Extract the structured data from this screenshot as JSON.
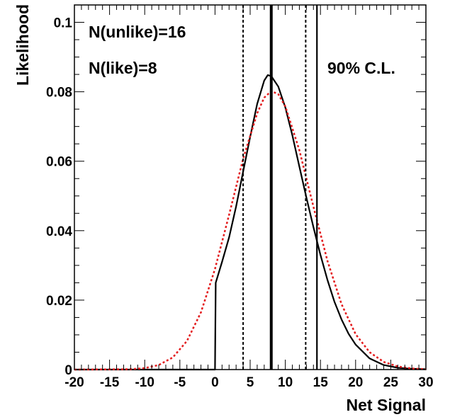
{
  "chart_data": {
    "type": "line",
    "xlabel": "Net Signal",
    "ylabel": "Likelihood",
    "xlim": [
      -20,
      30
    ],
    "ylim": [
      0,
      0.105
    ],
    "x_ticks": [
      -20,
      -15,
      -10,
      -5,
      0,
      5,
      10,
      15,
      20,
      25,
      30
    ],
    "x_tick_labels": [
      "-20",
      "-15",
      "-10",
      "-5",
      "0",
      "5",
      "10",
      "15",
      "20",
      "25",
      "30"
    ],
    "y_ticks": [
      0,
      0.02,
      0.04,
      0.06,
      0.08,
      0.1
    ],
    "y_tick_labels": [
      "0",
      "0.02",
      "0.04",
      "0.06",
      "0.08",
      "0.1"
    ],
    "grid": false,
    "annotations": [
      "N(unlike)=16",
      "N(like)=8",
      "90% C.L."
    ],
    "series": [
      {
        "style": "solid",
        "color": "#000000",
        "x": [
          -20,
          0,
          0.1,
          1,
          2,
          3,
          4,
          5,
          6,
          7,
          7.5,
          8,
          9,
          10,
          11,
          12,
          13,
          14,
          15,
          16,
          17,
          18,
          19,
          20,
          22,
          24,
          26,
          28,
          30
        ],
        "y": [
          0,
          0,
          0.025,
          0.031,
          0.038,
          0.047,
          0.057,
          0.067,
          0.0765,
          0.0832,
          0.0848,
          0.0845,
          0.0815,
          0.0755,
          0.0675,
          0.0585,
          0.0495,
          0.041,
          0.033,
          0.0258,
          0.0195,
          0.0144,
          0.0103,
          0.0072,
          0.0032,
          0.0013,
          0.0005,
          0.0002,
          0.0001
        ]
      },
      {
        "style": "dotted",
        "color": "#e31a1c",
        "x": [
          -20,
          -12,
          -10,
          -8,
          -6,
          -4,
          -2,
          0,
          2,
          4,
          6,
          7,
          8,
          9,
          10,
          12,
          14,
          16,
          18,
          20,
          22,
          24,
          26,
          28,
          30
        ],
        "y": [
          0,
          0.0001,
          0.0004,
          0.0013,
          0.0035,
          0.0082,
          0.0165,
          0.029,
          0.0445,
          0.0607,
          0.0738,
          0.0783,
          0.0802,
          0.0793,
          0.0758,
          0.0632,
          0.0469,
          0.0313,
          0.0188,
          0.0102,
          0.005,
          0.0022,
          0.0009,
          0.0003,
          0.0001
        ]
      }
    ],
    "vertical_lines": [
      {
        "x": 8.0,
        "style": "solid-thick"
      },
      {
        "x": 14.5,
        "style": "solid"
      },
      {
        "x": 4.0,
        "style": "dotted"
      },
      {
        "x": 12.9,
        "style": "dotted"
      }
    ]
  }
}
